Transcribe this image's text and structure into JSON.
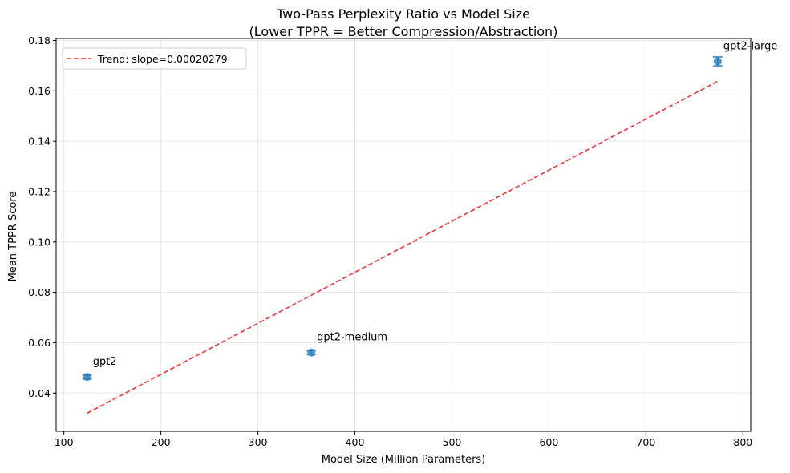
{
  "chart_data": {
    "type": "scatter",
    "title": "Two-Pass Perplexity Ratio vs Model Size",
    "subtitle": "(Lower TPPR = Better Compression/Abstraction)",
    "xlabel": "Model Size (Million Parameters)",
    "ylabel": "Mean TPPR Score",
    "xlim": [
      92,
      808
    ],
    "ylim": [
      0.0248,
      0.1808
    ],
    "xticks": [
      100,
      200,
      300,
      400,
      500,
      600,
      700,
      800
    ],
    "yticks": [
      0.04,
      0.06,
      0.08,
      0.1,
      0.12,
      0.14,
      0.16,
      0.18
    ],
    "ytick_labels": [
      "0.04",
      "0.06",
      "0.08",
      "0.10",
      "0.12",
      "0.14",
      "0.16",
      "0.18"
    ],
    "grid": true,
    "legend_position": "top-left",
    "points": [
      {
        "label": "gpt2",
        "x": 124,
        "y": 0.0464,
        "err": 0.0008
      },
      {
        "label": "gpt2-medium",
        "x": 355,
        "y": 0.0561,
        "err": 0.0008
      },
      {
        "label": "gpt2-large",
        "x": 774,
        "y": 0.1717,
        "err": 0.0018
      }
    ],
    "trend": {
      "legend_label": "Trend: slope=0.00020279",
      "x": [
        124,
        774
      ],
      "y": [
        0.032,
        0.1638
      ]
    },
    "colors": {
      "points": "#1f77b4",
      "trend": "#ee3333",
      "grid": "#e6e6e6",
      "axes": "#000000"
    }
  }
}
